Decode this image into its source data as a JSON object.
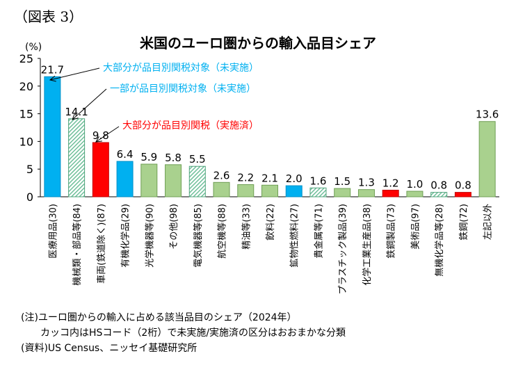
{
  "figure_label": "（図表 3）",
  "notes": {
    "note1": "(注)ユーロ圏からの輸入に占める該当品目のシェア（2024年）",
    "note2": "カッコ内はHSコード（2桁）で未実施/実施済の区分はおおまかな分類",
    "source": "(資料)US Census、ニッセイ基礎研究所"
  },
  "colors": {
    "blue": "#00b0f0",
    "green": "#a9d18e",
    "red": "#ff0000",
    "hatch_green": "#6fbf9a",
    "annotation_blue": "#00b0f0",
    "annotation_red": "#ff0000"
  },
  "chart_data": {
    "type": "bar",
    "title": "米国のユーロ圏からの輸入品目シェア",
    "ylabel": "(%)",
    "ylim": [
      0,
      25
    ],
    "yticks": [
      "0",
      "5",
      "10",
      "15",
      "20",
      "25"
    ],
    "grid": false,
    "categories": [
      "医療用品(30)",
      "機械類・部品等(84)",
      "車両(鉄道除く)(87)",
      "有機化学品(29)",
      "光学機器等(90)",
      "その他(98)",
      "電気機器等(85)",
      "航空機等(88)",
      "精油等(33)",
      "飲料(22)",
      "鉱物性燃料(27)",
      "貴金属等(71)",
      "プラスチック製品(39)",
      "化学工業生産品(38)",
      "鉄鋼製品(73)",
      "美術品(97)",
      "無機化学品等(28)",
      "鉄鋼(72)",
      "左記以外"
    ],
    "values": [
      21.7,
      14.1,
      9.8,
      6.4,
      5.9,
      5.8,
      5.5,
      2.6,
      2.2,
      2.1,
      2.0,
      1.6,
      1.5,
      1.3,
      1.2,
      1.0,
      0.8,
      0.8,
      13.6
    ],
    "value_labels": [
      "21.7",
      "14.1",
      "9.8",
      "6.4",
      "5.9",
      "5.8",
      "5.5",
      "2.6",
      "2.2",
      "2.1",
      "2.0",
      "1.6",
      "1.5",
      "1.3",
      "1.2",
      "1.0",
      "0.8",
      "0.8",
      "13.6"
    ],
    "bar_styles": [
      "blue",
      "hatch",
      "red",
      "blue",
      "green",
      "green",
      "hatch",
      "green",
      "green",
      "green",
      "blue",
      "hatch",
      "green",
      "green",
      "red",
      "green",
      "hatch",
      "red",
      "green"
    ],
    "annotations": [
      {
        "text": "大部分が品目別関税対象（未実施）",
        "color": "blue",
        "target_index": 0
      },
      {
        "text": "一部が品目別関税対象（未実施）",
        "color": "blue",
        "target_index": 1
      },
      {
        "text": "大部分が品目別関税（実施済）",
        "color": "red",
        "target_index": 2
      }
    ]
  }
}
